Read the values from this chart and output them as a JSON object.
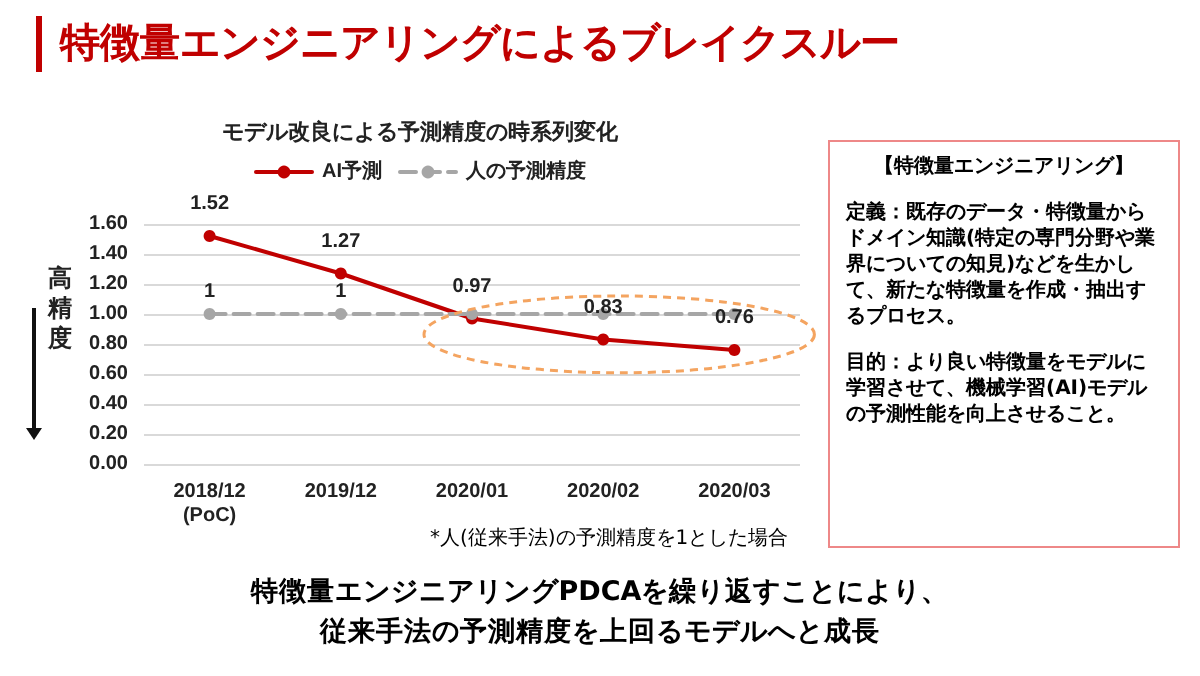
{
  "chart_data": {
    "type": "line",
    "title": "特徴量エンジニアリングによるブレイクスルー",
    "subtitle": "モデル改良による予測精度の時系列変化",
    "ylabel": "高精度",
    "categories": [
      "2018/12\n(PoC)",
      "2019/12",
      "2020/01",
      "2020/02",
      "2020/03"
    ],
    "series": [
      {
        "name": "AI予測",
        "color": "#c00000",
        "values": [
          1.52,
          1.27,
          0.97,
          0.83,
          0.76
        ],
        "value_labels": [
          "1.52",
          "1.27",
          "0.97",
          "0.83",
          "0.76"
        ],
        "line_style": "solid"
      },
      {
        "name": "人の予測精度",
        "color": "#a6a6a6",
        "values": [
          1,
          1,
          1,
          1,
          1
        ],
        "value_labels": [
          "1",
          "1",
          null,
          null,
          null
        ],
        "line_style": "dashed"
      }
    ],
    "ylim": [
      0,
      1.6
    ],
    "yticks": [
      {
        "value": 0,
        "label": "0.00"
      },
      {
        "value": 0.2,
        "label": "0.20"
      },
      {
        "value": 0.4,
        "label": "0.40"
      },
      {
        "value": 0.6,
        "label": "0.60"
      },
      {
        "value": 0.8,
        "label": "0.80"
      },
      {
        "value": 1,
        "label": "1.00"
      },
      {
        "value": 1.2,
        "label": "1.20"
      },
      {
        "value": 1.4,
        "label": "1.40"
      },
      {
        "value": 1.6,
        "label": "1.60"
      }
    ],
    "grid": "y",
    "legend": "top",
    "marker": "circle",
    "annotations": [
      "*人(従来手法)の予測精度を1とした場合",
      "【特徴量エンジニアリング】",
      "定義：既存のデータ・特徴量からドメイン知識(特定の専門分野や業界についての知見)などを生かして、新たな特徴量を作成・抽出するプロセス。",
      "目的：より良い特徴量をモデルに学習させて、機械学習(AI)モデルの予測性能を向上させること。",
      "特徴量エンジニアリングPDCAを繰り返すことにより、",
      "従来手法の予測精度を上回るモデルへと成長"
    ]
  }
}
